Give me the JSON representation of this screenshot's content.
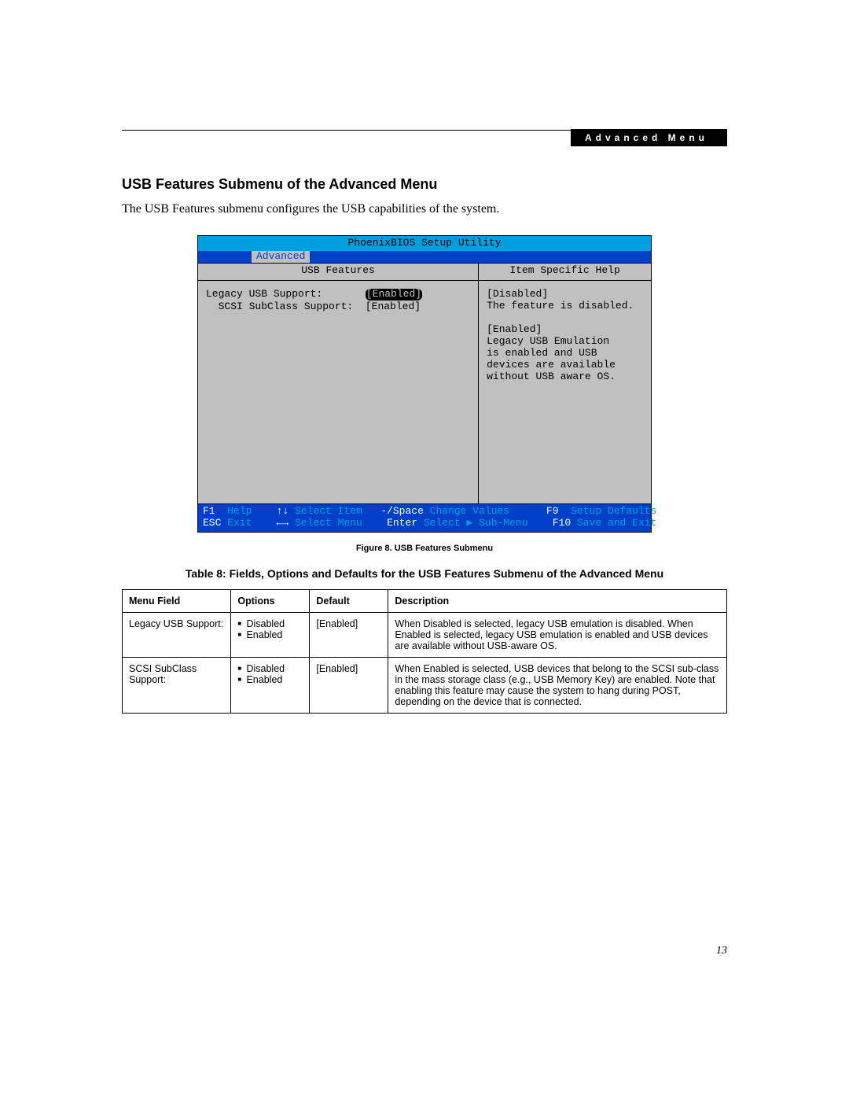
{
  "header": {
    "badge": "Advanced Menu"
  },
  "section": {
    "title": "USB Features Submenu of the Advanced Menu",
    "intro": "The USB Features submenu configures the USB capabilities of the system."
  },
  "bios": {
    "title": "PhoenixBIOS Setup Utility",
    "active_tab": "Advanced",
    "left_panel_title": "USB Features",
    "right_panel_title": "Item Specific Help",
    "rows": [
      {
        "label": "Legacy USB Support:",
        "value": "[Enabled]",
        "highlighted": true,
        "indent": 0
      },
      {
        "label": "SCSI SubClass Support:",
        "value": "[Enabled]",
        "highlighted": false,
        "indent": 2
      }
    ],
    "help_lines": [
      "[Disabled]",
      "The feature is disabled.",
      "",
      "[Enabled]",
      "Legacy USB Emulation",
      "is enabled and USB",
      "devices are available",
      "without USB aware OS."
    ],
    "footer": {
      "row1": [
        {
          "key": "F1",
          "txt": "  Help    "
        },
        {
          "key": "↑↓",
          "txt": " Select Item   "
        },
        {
          "key": "-/Space",
          "txt": " Change Values      "
        },
        {
          "key": "F9",
          "txt": "  Setup Defaults"
        }
      ],
      "row2": [
        {
          "key": "ESC",
          "txt": " Exit    "
        },
        {
          "key": "←→",
          "txt": " Select Menu    "
        },
        {
          "key": "Enter",
          "txt": " Select ▶ Sub-Menu    "
        },
        {
          "key": "F10",
          "txt": " Save and Exit"
        }
      ]
    },
    "colors": {
      "title_bg": "#00a0e0",
      "menubar_bg": "#0040c8",
      "panel_bg": "#c0c0c0"
    }
  },
  "figure": {
    "caption": "Figure 8.  USB Features Submenu"
  },
  "table": {
    "caption": "Table 8: Fields, Options and Defaults for the USB Features Submenu of the Advanced Menu",
    "headers": [
      "Menu Field",
      "Options",
      "Default",
      "Description"
    ],
    "rows": [
      {
        "field": "Legacy USB Support:",
        "options": [
          "Disabled",
          "Enabled"
        ],
        "default": "[Enabled]",
        "description": "When Disabled is selected, legacy USB emulation is disabled. When Enabled is selected, legacy USB emulation is enabled and USB devices are available without USB-aware OS."
      },
      {
        "field": "SCSI SubClass Support:",
        "options": [
          "Disabled",
          "Enabled"
        ],
        "default": "[Enabled]",
        "description": "When Enabled is selected, USB devices that belong to the SCSI sub-class in the mass storage class (e.g., USB Memory Key) are enabled. Note that enabling this feature may cause the system to hang during POST, depending on the device that is connected."
      }
    ]
  },
  "page_number": "13"
}
